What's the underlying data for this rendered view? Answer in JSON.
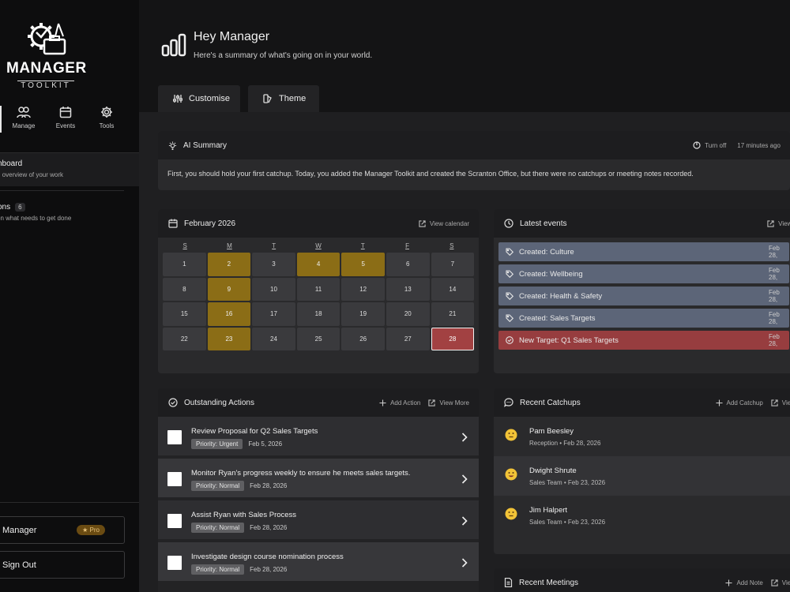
{
  "brand": {
    "title": "MANAGER",
    "subtitle": "TOOLKIT"
  },
  "sidebar": {
    "nav": [
      {
        "label": "Manage",
        "icon": "users-icon"
      },
      {
        "label": "Events",
        "icon": "calendar-icon"
      },
      {
        "label": "Tools",
        "icon": "gear-icon"
      }
    ],
    "menu": [
      {
        "title": "nboard",
        "subtitle": "n overview of your work"
      },
      {
        "title": "ons",
        "count": "6",
        "subtitle": "on what needs to get done"
      }
    ],
    "account_label": "Manager",
    "pro_label": "Pro",
    "signout_label": "Sign Out"
  },
  "header": {
    "title": "Hey Manager",
    "subtitle": "Here's a summary of what's going on in your world.",
    "tabs": [
      {
        "label": "Customise"
      },
      {
        "label": "Theme"
      }
    ]
  },
  "ai_summary": {
    "title": "AI Summary",
    "toggle_label": "Turn off",
    "time": "17 minutes ago",
    "text": "First, you should hold your first catchup. Today, you added the Manager Toolkit and created the Scranton Office, but there were no catchups or meeting notes recorded."
  },
  "calendar": {
    "month": "February 2026",
    "view_label": "View calendar",
    "dows": [
      "S",
      "M",
      "T",
      "W",
      "T",
      "F",
      "S"
    ],
    "weeks": [
      [
        "1",
        "2",
        "3",
        "4",
        "5",
        "6",
        "7"
      ],
      [
        "8",
        "9",
        "10",
        "11",
        "12",
        "13",
        "14"
      ],
      [
        "15",
        "16",
        "17",
        "18",
        "19",
        "20",
        "21"
      ],
      [
        "22",
        "23",
        "24",
        "25",
        "26",
        "27",
        "28"
      ]
    ],
    "highlighted": [
      "2",
      "4",
      "5",
      "9",
      "16",
      "23"
    ],
    "today": "28",
    "colors": {
      "highlight": "#8b6d16",
      "today": "#a24142"
    }
  },
  "events": {
    "title": "Latest events",
    "view_label": "View e",
    "items": [
      {
        "label": "Created: Culture",
        "date": "Feb 28,",
        "kind": "tag"
      },
      {
        "label": "Created: Wellbeing",
        "date": "Feb 28,",
        "kind": "tag"
      },
      {
        "label": "Created: Health & Safety",
        "date": "Feb 28,",
        "kind": "tag"
      },
      {
        "label": "Created: Sales Targets",
        "date": "Feb 28,",
        "kind": "tag"
      },
      {
        "label": "New Target: Q1 Sales Targets",
        "date": "Feb 28,",
        "kind": "target"
      }
    ]
  },
  "actions": {
    "title": "Outstanding Actions",
    "add_label": "Add Action",
    "view_label": "View More",
    "items": [
      {
        "title": "Review Proposal for Q2 Sales Targets",
        "priority": "Priority: Urgent",
        "date": "Feb 5, 2026"
      },
      {
        "title": "Monitor Ryan's progress weekly to ensure he meets sales targets.",
        "priority": "Priority: Normal",
        "date": "Feb 28, 2026"
      },
      {
        "title": "Assist Ryan with Sales Process",
        "priority": "Priority: Normal",
        "date": "Feb 28, 2026"
      },
      {
        "title": "Investigate design course nomination process",
        "priority": "Priority: Normal",
        "date": "Feb 28, 2026"
      }
    ]
  },
  "catchups": {
    "title": "Recent Catchups",
    "add_label": "Add Catchup",
    "view_label": "View",
    "items": [
      {
        "name": "Pam Beesley",
        "sub": "Reception • Feb 28, 2026",
        "emoji": "neutral-face-icon"
      },
      {
        "name": "Dwight Shrute",
        "sub": "Sales Team • Feb 23, 2026",
        "emoji": "grinning-face-icon"
      },
      {
        "name": "Jim Halpert",
        "sub": "Sales Team • Feb 23, 2026",
        "emoji": "neutral-face-icon"
      }
    ]
  },
  "meetings": {
    "title": "Recent Meetings",
    "add_label": "Add Note",
    "view_label": "View"
  }
}
